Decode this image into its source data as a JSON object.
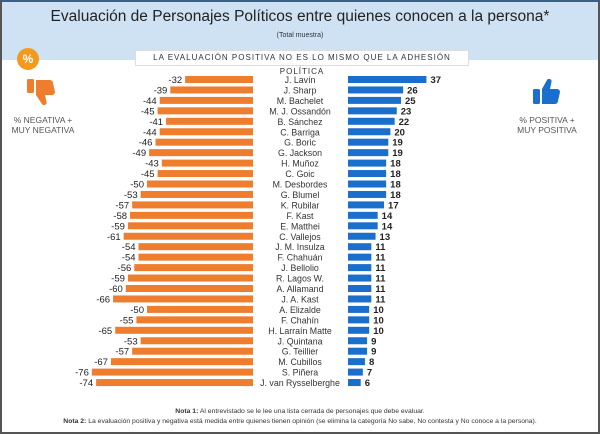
{
  "header": {
    "title": "Evaluación de Personajes Políticos entre quienes conocen a la persona*",
    "subtitle": "(Total muestra)",
    "banner": "LA EVALUACIÓN POSITIVA NO ES LO MISMO QUE LA ADHESIÓN POLÍTICA",
    "badge": "%"
  },
  "legend": {
    "negative_line1": "% NEGATIVA +",
    "negative_line2": "MUY NEGATIVA",
    "positive_line1": "% POSITIVA +",
    "positive_line2": "MUY POSITIVA",
    "negative_icon": "thumbs-down-icon",
    "positive_icon": "thumbs-up-icon"
  },
  "colors": {
    "negative": "#ee7d2e",
    "positive": "#1a6fcc",
    "badge": "#f39a1e",
    "header_band": "#cfe2f3"
  },
  "notes": {
    "note1_label": "Nota 1:",
    "note1_text": " Al entrevistado se le lee una lista cerrada de personajes que debe evaluar.",
    "note2_label": "Nota 2:",
    "note2_text": " La evaluación positiva y negativa está medida entre quienes tienen opinión (se elimina la categoría No sabe, No contesta y No conoce a la persona)."
  },
  "chart_data": {
    "type": "bar",
    "orientation": "horizontal-diverging",
    "title": "Evaluación de Personajes Políticos entre quienes conocen a la persona*",
    "subtitle": "(Total muestra)",
    "categories": [
      "J. Lavín",
      "J. Sharp",
      "M. Bachelet",
      "M. J. Ossandón",
      "B. Sánchez",
      "C. Barriga",
      "G. Boric",
      "G. Jackson",
      "H. Muñoz",
      "C. Goic",
      "M. Desbordes",
      "G. Blumel",
      "K. Rubilar",
      "F. Kast",
      "E. Matthei",
      "C. Vallejos",
      "J. M. Insulza",
      "F. Chahuán",
      "J. Bellolio",
      "R. Lagos W.",
      "A. Allamand",
      "J. A. Kast",
      "A. Elizalde",
      "F. Chahín",
      "H. Larraín Matte",
      "J. Quintana",
      "G. Teillier",
      "M. Cubillos",
      "S. Piñera",
      "J. van Rysselberghe"
    ],
    "series": [
      {
        "name": "% NEGATIVA + MUY NEGATIVA",
        "values": [
          -32,
          -39,
          -44,
          -45,
          -41,
          -44,
          -46,
          -49,
          -43,
          -45,
          -50,
          -53,
          -57,
          -58,
          -59,
          -61,
          -54,
          -54,
          -56,
          -59,
          -60,
          -66,
          -50,
          -55,
          -65,
          -53,
          -57,
          -67,
          -76,
          -74
        ]
      },
      {
        "name": "% POSITIVA + MUY POSITIVA",
        "values": [
          37,
          26,
          25,
          23,
          22,
          20,
          19,
          19,
          18,
          18,
          18,
          18,
          17,
          14,
          14,
          13,
          11,
          11,
          11,
          11,
          11,
          11,
          10,
          10,
          10,
          9,
          9,
          8,
          7,
          6
        ]
      }
    ],
    "xlabel": "",
    "ylabel": "",
    "grid": false,
    "legend": "left-and-right"
  }
}
